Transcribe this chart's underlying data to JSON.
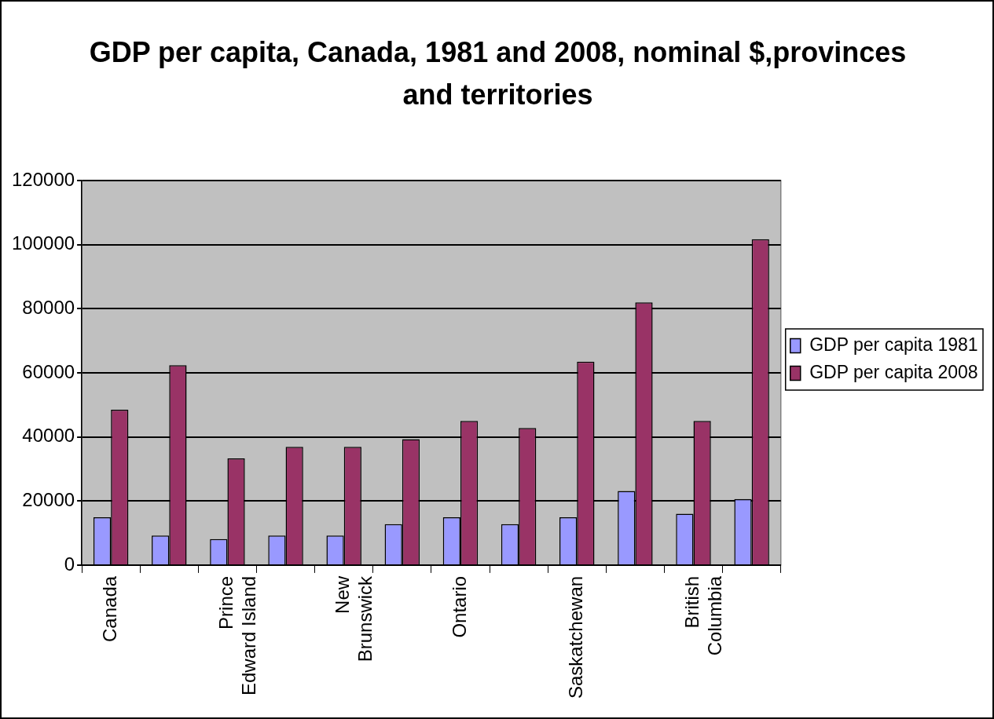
{
  "chart_data": {
    "type": "bar",
    "title": "GDP per capita, Canada, 1981 and 2008, nominal $,provinces and territories",
    "categories": [
      "Canada",
      null,
      "Prince Edward Island",
      null,
      "New Brunswick",
      null,
      "Ontario",
      null,
      "Saskatchewan",
      null,
      "British Columbia",
      null
    ],
    "series": [
      {
        "name": "GDP per capita 1981",
        "color": "#9999ff",
        "values": [
          14900,
          9200,
          8100,
          9200,
          9200,
          12800,
          14900,
          12800,
          14900,
          23100,
          16000,
          20600
        ]
      },
      {
        "name": "GDP per capita 2008",
        "color": "#993366",
        "values": [
          48500,
          62400,
          33300,
          36900,
          36900,
          39300,
          45000,
          42800,
          63500,
          82000,
          45000,
          101700
        ]
      }
    ],
    "ylim": [
      0,
      120000
    ],
    "yticks": [
      0,
      20000,
      40000,
      60000,
      80000,
      100000,
      120000
    ],
    "grid": "y",
    "legend": "right"
  }
}
